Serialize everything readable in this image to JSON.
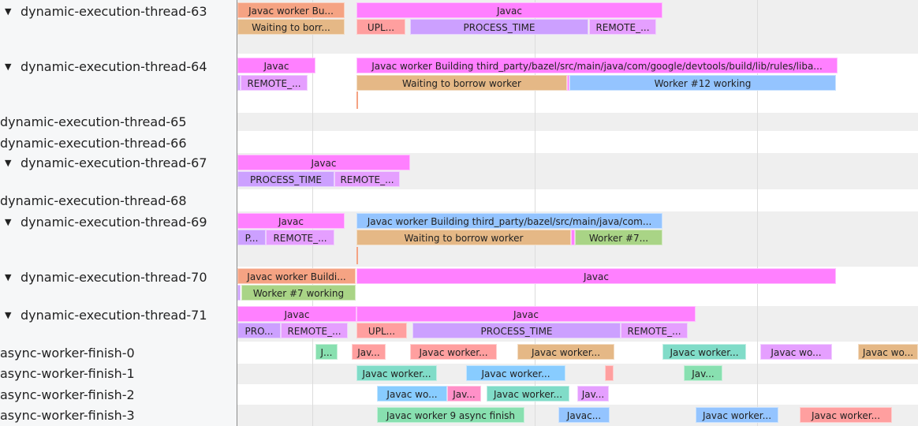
{
  "threads": [
    {
      "name": "dynamic-execution-thread-63",
      "expandable": true
    },
    {
      "name": "dynamic-execution-thread-64",
      "expandable": true
    },
    {
      "name": "dynamic-execution-thread-65",
      "expandable": false
    },
    {
      "name": "dynamic-execution-thread-66",
      "expandable": false
    },
    {
      "name": "dynamic-execution-thread-67",
      "expandable": true
    },
    {
      "name": "dynamic-execution-thread-68",
      "expandable": false
    },
    {
      "name": "dynamic-execution-thread-69",
      "expandable": true
    },
    {
      "name": "dynamic-execution-thread-70",
      "expandable": true
    },
    {
      "name": "dynamic-execution-thread-71",
      "expandable": true
    },
    {
      "name": "async-worker-finish-0",
      "expandable": false
    },
    {
      "name": "async-worker-finish-1",
      "expandable": false
    },
    {
      "name": "async-worker-finish-2",
      "expandable": false
    },
    {
      "name": "async-worker-finish-3",
      "expandable": false
    }
  ],
  "expand_icon": "triangle-down-icon",
  "colors": {
    "javac": "#ff80ff",
    "worker_build": "#f5a383",
    "waiting": "#e5b886",
    "upload": "#ff9f9f",
    "process": "#cca0ff",
    "remote": "#e59fff",
    "worker_blue": "#94c4ff",
    "worker_green": "#a9d486",
    "teal": "#80dcc8",
    "green": "#88e0b0",
    "lightblue": "#88ccff",
    "pink2": "#ff90c8"
  },
  "bars": [
    {
      "label": "Javac worker Bu...",
      "color": "worker_build"
    },
    {
      "label": "Javac",
      "color": "javac"
    },
    {
      "label": "Waiting to borr...",
      "color": "waiting"
    },
    {
      "label": "UPL...",
      "color": "upload"
    },
    {
      "label": "PROCESS_TIME",
      "color": "process"
    },
    {
      "label": "REMOTE_...",
      "color": "remote"
    },
    {
      "label": "Javac",
      "color": "javac"
    },
    {
      "label": "Javac worker Building third_party/bazel/src/main/java/com/google/devtools/build/lib/rules/liba...",
      "color": "javac"
    },
    {
      "label": "",
      "color": "process"
    },
    {
      "label": "REMOTE_...",
      "color": "remote"
    },
    {
      "label": "Waiting to borrow worker",
      "color": "waiting"
    },
    {
      "label": "",
      "color": "javac"
    },
    {
      "label": "Worker #12 working",
      "color": "worker_blue"
    },
    {
      "label": "",
      "color": "worker_build"
    },
    {
      "label": "Javac",
      "color": "javac"
    },
    {
      "label": "PROCESS_TIME",
      "color": "process"
    },
    {
      "label": "REMOTE_...",
      "color": "remote"
    },
    {
      "label": "Javac",
      "color": "javac"
    },
    {
      "label": "Javac worker Building third_party/bazel/src/main/java/com...",
      "color": "worker_blue"
    },
    {
      "label": "P...",
      "color": "process"
    },
    {
      "label": "REMOTE_...",
      "color": "remote"
    },
    {
      "label": "Waiting to borrow worker",
      "color": "waiting"
    },
    {
      "label": "",
      "color": "javac"
    },
    {
      "label": "Worker #7...",
      "color": "worker_green"
    },
    {
      "label": "",
      "color": "worker_build"
    },
    {
      "label": "Javac worker Buildi...",
      "color": "worker_build"
    },
    {
      "label": "Javac",
      "color": "javac"
    },
    {
      "label": "",
      "color": "process"
    },
    {
      "label": "Worker #7 working",
      "color": "worker_green"
    },
    {
      "label": "Javac",
      "color": "javac"
    },
    {
      "label": "Javac",
      "color": "javac"
    },
    {
      "label": "PRO...",
      "color": "process"
    },
    {
      "label": "REMOTE_...",
      "color": "remote"
    },
    {
      "label": "UPL...",
      "color": "upload"
    },
    {
      "label": "PROCESS_TIME",
      "color": "process"
    },
    {
      "label": "REMOTE_...",
      "color": "remote"
    },
    {
      "label": "J...",
      "color": "green"
    },
    {
      "label": "Jav...",
      "color": "upload"
    },
    {
      "label": "Javac worker...",
      "color": "upload"
    },
    {
      "label": "Javac worker...",
      "color": "waiting"
    },
    {
      "label": "Javac worker...",
      "color": "teal"
    },
    {
      "label": "Javac wo...",
      "color": "remote"
    },
    {
      "label": "Javac wo...",
      "color": "waiting"
    },
    {
      "label": "Javac worker...",
      "color": "teal"
    },
    {
      "label": "Javac worker...",
      "color": "lightblue"
    },
    {
      "label": "",
      "color": "upload"
    },
    {
      "label": "Jav...",
      "color": "green"
    },
    {
      "label": "Javac wo...",
      "color": "lightblue"
    },
    {
      "label": "Jav...",
      "color": "pink2"
    },
    {
      "label": "Javac worker...",
      "color": "teal"
    },
    {
      "label": "Jav...",
      "color": "remote"
    },
    {
      "label": "Javac worker 9 async finish",
      "color": "green"
    },
    {
      "label": "Javac...",
      "color": "worker_blue"
    },
    {
      "label": "Javac worker...",
      "color": "worker_blue"
    },
    {
      "label": "Javac worker...",
      "color": "upload"
    }
  ]
}
